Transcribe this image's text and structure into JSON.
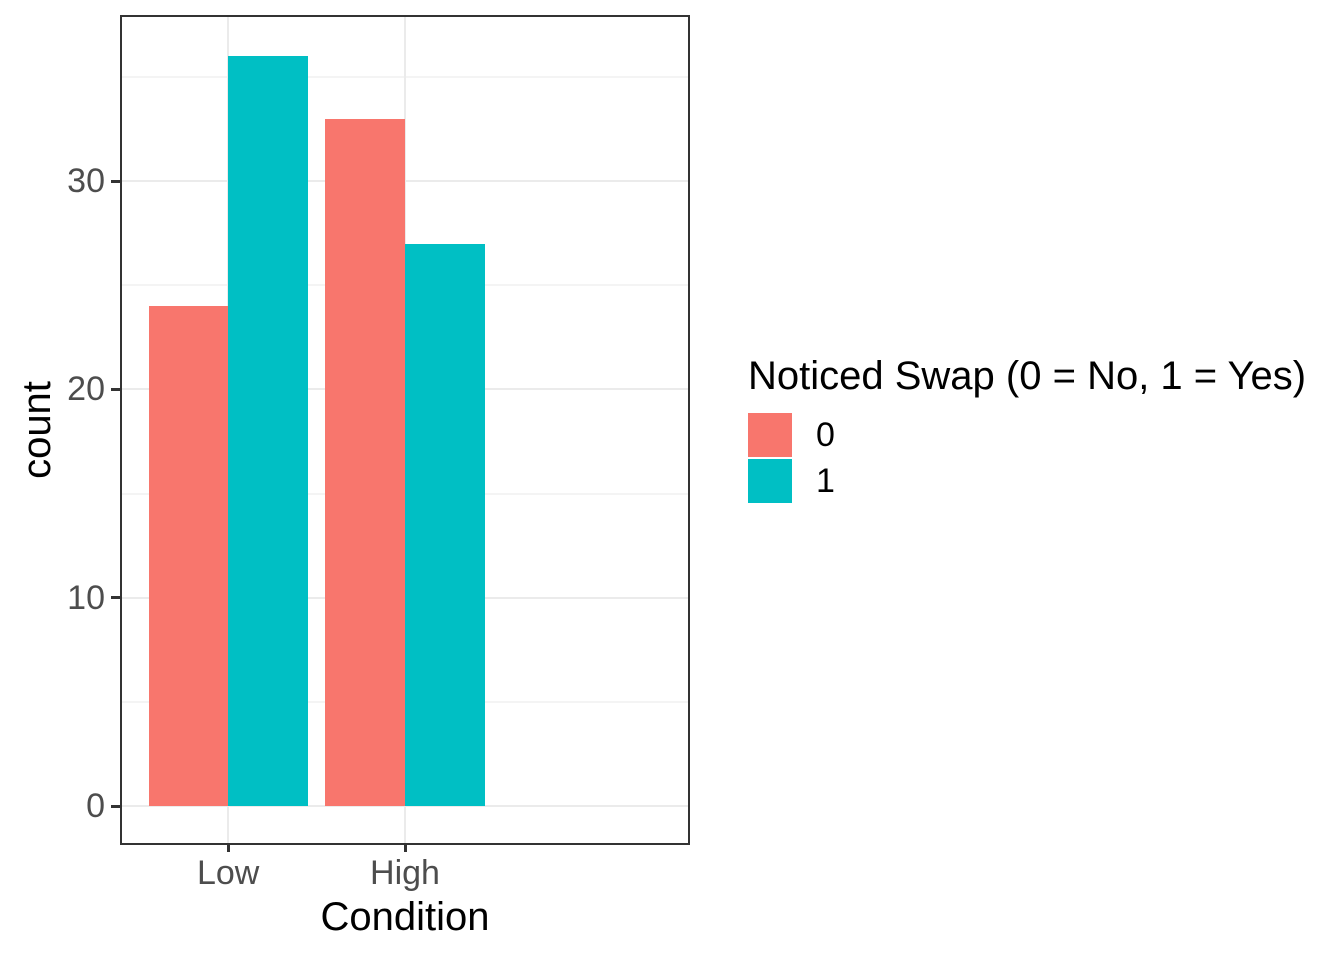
{
  "chart_data": {
    "type": "bar",
    "grouping": "dodge",
    "categories": [
      "Low",
      "High"
    ],
    "series": [
      {
        "name": "0",
        "color": "#F8766D",
        "values": [
          24,
          33
        ]
      },
      {
        "name": "1",
        "color": "#00BFC4",
        "values": [
          36,
          27
        ]
      }
    ],
    "title": "",
    "xlabel": "Condition",
    "ylabel": "count",
    "y_ticks": [
      0,
      10,
      20,
      30
    ],
    "y_tick_labels": [
      "0",
      "10",
      "20",
      "30"
    ],
    "y_minor_ticks": [
      5,
      15,
      25,
      35
    ],
    "ylim": [
      -1.8,
      37.8
    ],
    "legend_title": "Noticed Swap (0 = No, 1 = Yes)",
    "legend_position": "right",
    "grid": true,
    "colors": {
      "series_0": "#F8766D",
      "series_1": "#00BFC4",
      "grid_major": "#EBEBEB",
      "grid_minor": "#F4F4F4",
      "panel_border": "#333333",
      "tick_mark": "#333333",
      "tick_label_text": "#4D4D4D",
      "title_text": "#000000",
      "panel_background": "#FFFFFF"
    }
  }
}
